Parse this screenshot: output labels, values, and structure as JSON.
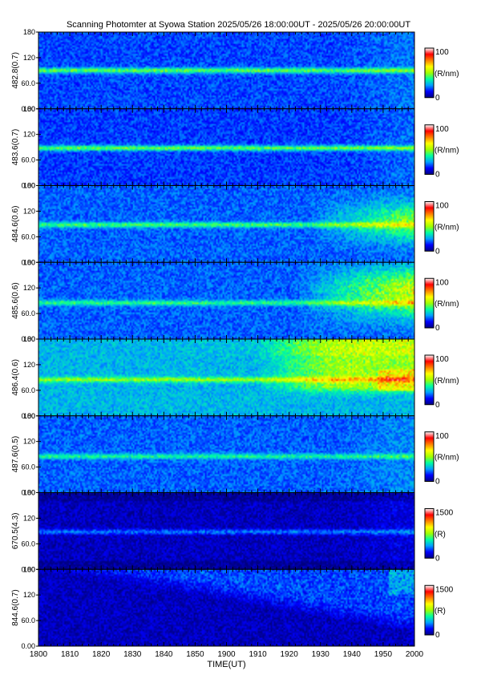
{
  "title": "Scanning Photomter at Syowa Station  2025/05/26 18:00:00UT - 2025/05/26 20:00:00UT",
  "chart_data": {
    "type": "heatmap",
    "xlabel": "TIME(UT)",
    "x_ticks": [
      "1800",
      "1810",
      "1820",
      "1830",
      "1840",
      "1850",
      "1900",
      "1910",
      "1920",
      "1930",
      "1940",
      "1950",
      "2000"
    ],
    "y_ticks": [
      "0.00",
      "60.0",
      "120",
      "180"
    ],
    "ylim": [
      0,
      180
    ],
    "colormap": [
      "#000080",
      "#0000ff",
      "#00a0ff",
      "#00ffa0",
      "#a0ff00",
      "#ffff00",
      "#ff8000",
      "#ff0000",
      "#ffffff"
    ],
    "panels": [
      {
        "ylabel": "482.8(0.7)",
        "unit": "(R/nm)",
        "cbar_ticks": [
          "0",
          "100"
        ],
        "cbar_max": 100,
        "band_y": 90,
        "band_level": 0.45,
        "base_level": 0.18,
        "glow": "low"
      },
      {
        "ylabel": "483.6(0.7)",
        "unit": "(R/nm)",
        "cbar_ticks": [
          "0",
          "100"
        ],
        "cbar_max": 100,
        "band_y": 88,
        "band_level": 0.45,
        "base_level": 0.17,
        "glow": "low"
      },
      {
        "ylabel": "484.6(0.6)",
        "unit": "(R/nm)",
        "cbar_ticks": [
          "0",
          "100"
        ],
        "cbar_max": 100,
        "band_y": 88,
        "band_level": 0.42,
        "base_level": 0.2,
        "glow": "medium"
      },
      {
        "ylabel": "485.6(0.6)",
        "unit": "(R/nm)",
        "cbar_ticks": [
          "0",
          "100"
        ],
        "cbar_max": 100,
        "band_y": 85,
        "band_level": 0.4,
        "base_level": 0.2,
        "glow": "high"
      },
      {
        "ylabel": "486.4(0.6)",
        "unit": "(R/nm)",
        "cbar_ticks": [
          "0",
          "100"
        ],
        "cbar_max": 100,
        "band_y": 85,
        "band_level": 0.5,
        "base_level": 0.28,
        "glow": "strong"
      },
      {
        "ylabel": "487.6(0.5)",
        "unit": "(R/nm)",
        "cbar_ticks": [
          "0",
          "100"
        ],
        "cbar_max": 100,
        "band_y": 85,
        "band_level": 0.38,
        "base_level": 0.2,
        "glow": "low"
      },
      {
        "ylabel": "670.5(4.3)",
        "unit": "(R)",
        "cbar_ticks": [
          "0",
          "1500"
        ],
        "cbar_max": 1500,
        "band_y": 88,
        "band_level": 0.22,
        "base_level": 0.06,
        "glow": "none"
      },
      {
        "ylabel": "844.6(0.7)",
        "unit": "(R)",
        "cbar_ticks": [
          "0",
          "1500"
        ],
        "cbar_max": 1500,
        "band_y": 0,
        "band_level": 0.0,
        "base_level": 0.06,
        "glow": "top"
      }
    ]
  }
}
